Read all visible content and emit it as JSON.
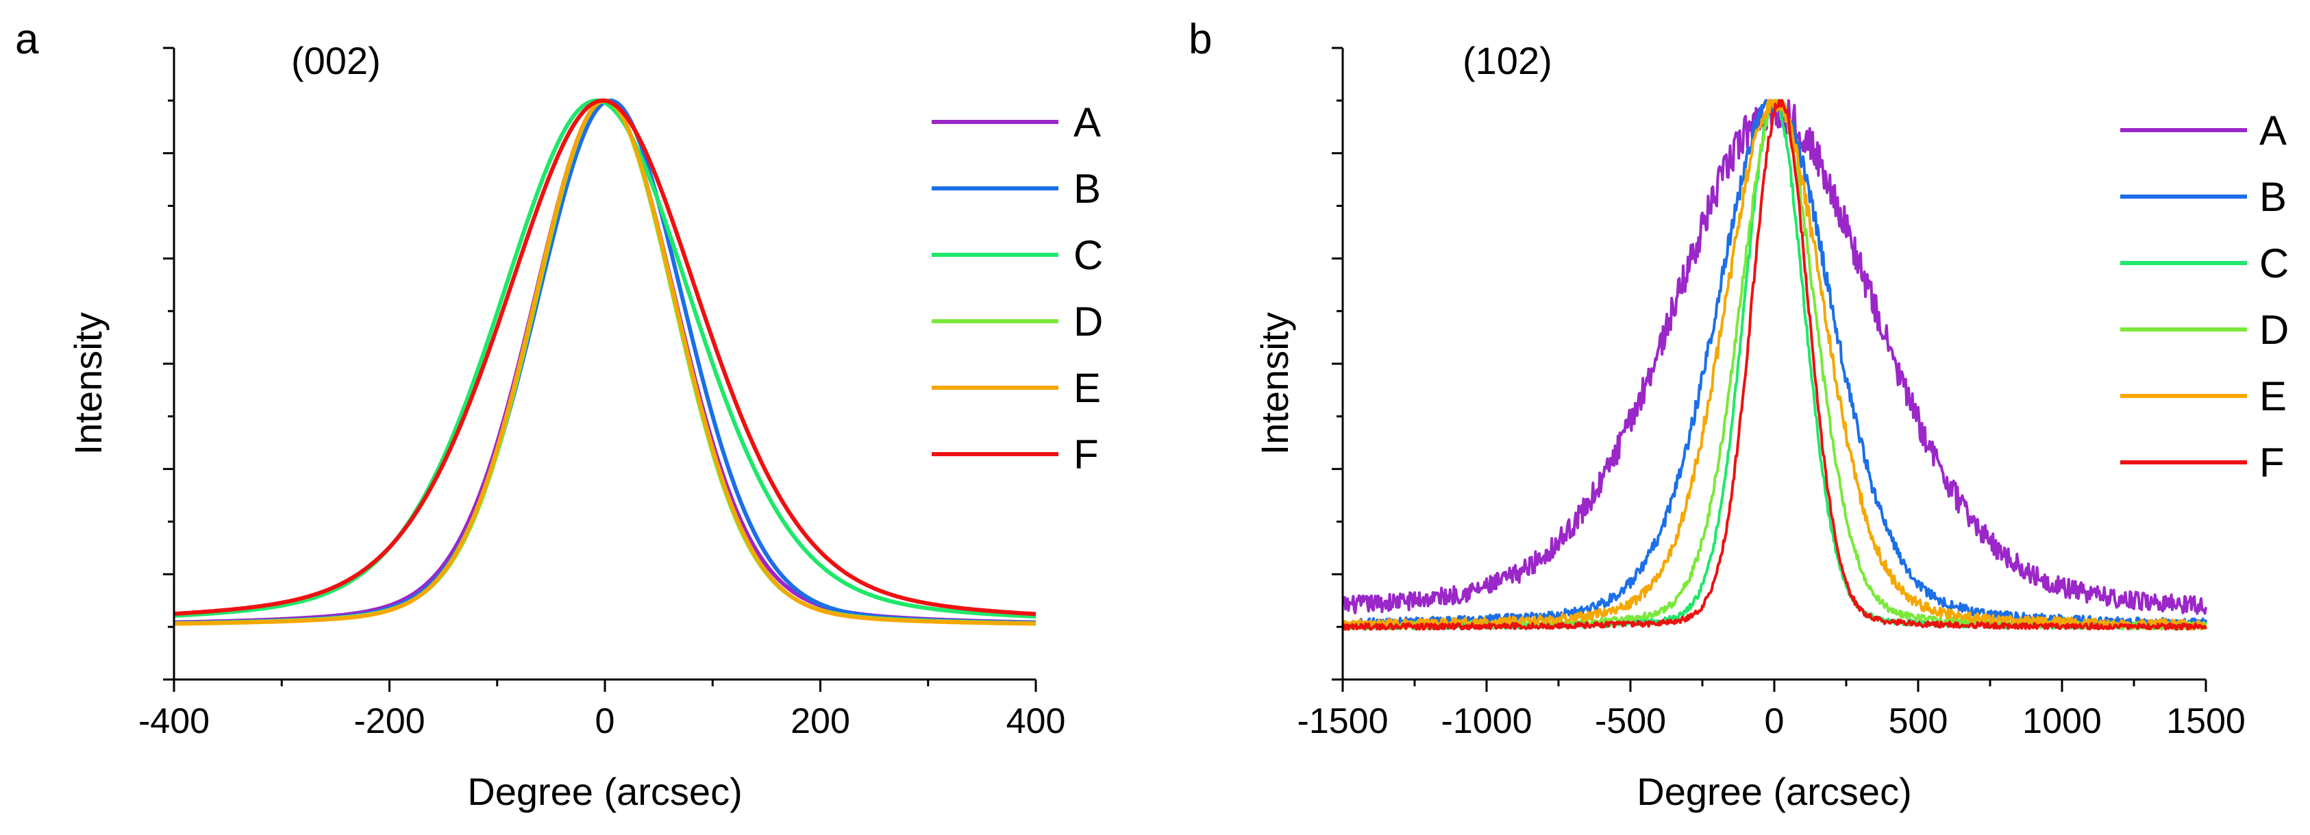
{
  "chart_data": [
    {
      "type": "line",
      "panel_label": "a",
      "annotation": "(002)",
      "xlabel": "Degree (arcsec)",
      "ylabel": "Intensity",
      "xlim": [
        -400,
        400
      ],
      "ylim": [
        -0.1,
        1.1
      ],
      "x_ticks": [
        -400,
        -200,
        0,
        200,
        400
      ],
      "x_tick_labels": [
        "-400",
        "-200",
        "0",
        "200",
        "400"
      ],
      "y_tick_labels_visible": false,
      "grid": false,
      "legend_position": "top-right",
      "series": [
        {
          "name": "A",
          "color": "#9b27c9",
          "center": 0,
          "hwhm": 80,
          "eta": 0.22,
          "baseline": 0,
          "noise": 0
        },
        {
          "name": "B",
          "color": "#1b6fe8",
          "center": 5,
          "hwhm": 82,
          "eta": 0.18,
          "baseline": 0,
          "noise": 0
        },
        {
          "name": "C",
          "color": "#1ee86a",
          "center": -8,
          "hwhm": 108,
          "eta": 0.3,
          "baseline": 0,
          "noise": 0
        },
        {
          "name": "D",
          "color": "#7ae83a",
          "center": 0,
          "hwhm": 78,
          "eta": 0.18,
          "baseline": 0,
          "noise": 0
        },
        {
          "name": "E",
          "color": "#f5a700",
          "center": 0,
          "hwhm": 79,
          "eta": 0.16,
          "baseline": 0,
          "noise": 0
        },
        {
          "name": "F",
          "color": "#ee1111",
          "center": -2,
          "hwhm": 110,
          "eta": 0.35,
          "baseline": 0,
          "noise": 0
        }
      ]
    },
    {
      "type": "line",
      "panel_label": "b",
      "annotation": "(102)",
      "xlabel": "Degree (arcsec)",
      "ylabel": "Intensity",
      "xlim": [
        -1500,
        1500
      ],
      "ylim": [
        -0.1,
        1.1
      ],
      "x_ticks": [
        -1500,
        -1000,
        -500,
        0,
        500,
        1000,
        1500
      ],
      "x_tick_labels": [
        "-1500",
        "-1000",
        "-500",
        "0",
        "500",
        "1000",
        "1500"
      ],
      "y_tick_labels_visible": false,
      "grid": false,
      "legend_position": "top-right",
      "series": [
        {
          "name": "A",
          "color": "#9b27c9",
          "center": 0,
          "hwhm": 420,
          "eta": 0.3,
          "baseline": 0.02,
          "noise": 0.035
        },
        {
          "name": "B",
          "color": "#1b6fe8",
          "center": 0,
          "hwhm": 240,
          "eta": 0.25,
          "baseline": 0,
          "noise": 0.02
        },
        {
          "name": "C",
          "color": "#1ee86a",
          "center": 0,
          "hwhm": 125,
          "eta": 0.12,
          "baseline": 0,
          "noise": 0.012
        },
        {
          "name": "D",
          "color": "#7ae83a",
          "center": 10,
          "hwhm": 155,
          "eta": 0.18,
          "baseline": 0,
          "noise": 0.015
        },
        {
          "name": "E",
          "color": "#f5a700",
          "center": 0,
          "hwhm": 205,
          "eta": 0.22,
          "baseline": 0,
          "noise": 0.02
        },
        {
          "name": "F",
          "color": "#ee1111",
          "center": 20,
          "hwhm": 118,
          "eta": 0.1,
          "baseline": 0,
          "noise": 0.012
        }
      ]
    }
  ]
}
